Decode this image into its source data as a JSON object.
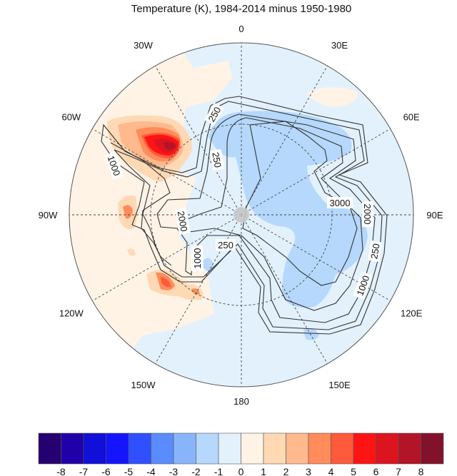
{
  "title": "Temperature (K), 1984-2014 minus 1950-1980",
  "longitude_labels": [
    "0",
    "30E",
    "60E",
    "90E",
    "120E",
    "150E",
    "180",
    "150W",
    "120W",
    "90W",
    "60W",
    "30W"
  ],
  "contour_labels": [
    "250",
    "1000",
    "250",
    "2000",
    "1000",
    "250",
    "3000",
    "2000",
    "250",
    "1000",
    "2000",
    "1000"
  ],
  "colorbar": {
    "labels": [
      "-8",
      "-7",
      "-6",
      "-5",
      "-4",
      "-3",
      "-2",
      "-1",
      "0",
      "1",
      "2",
      "3",
      "4",
      "5",
      "6",
      "7",
      "8"
    ],
    "colors": [
      "#250070",
      "#2000a8",
      "#1010d8",
      "#1414ff",
      "#3050ff",
      "#5a8cff",
      "#88b4fc",
      "#b5d8fc",
      "#e3f1fd",
      "#fff3e6",
      "#ffd9b4",
      "#ffb98c",
      "#ff8c5a",
      "#ff5a3c",
      "#ff1414",
      "#dc1420",
      "#b41428",
      "#82122c"
    ]
  },
  "colors": {
    "ocean_anomaly": "#e3f1fd",
    "warm_light": "#fff3e6",
    "cool": "#b5d8fc",
    "pole_marker": "#c8c8c8"
  }
}
